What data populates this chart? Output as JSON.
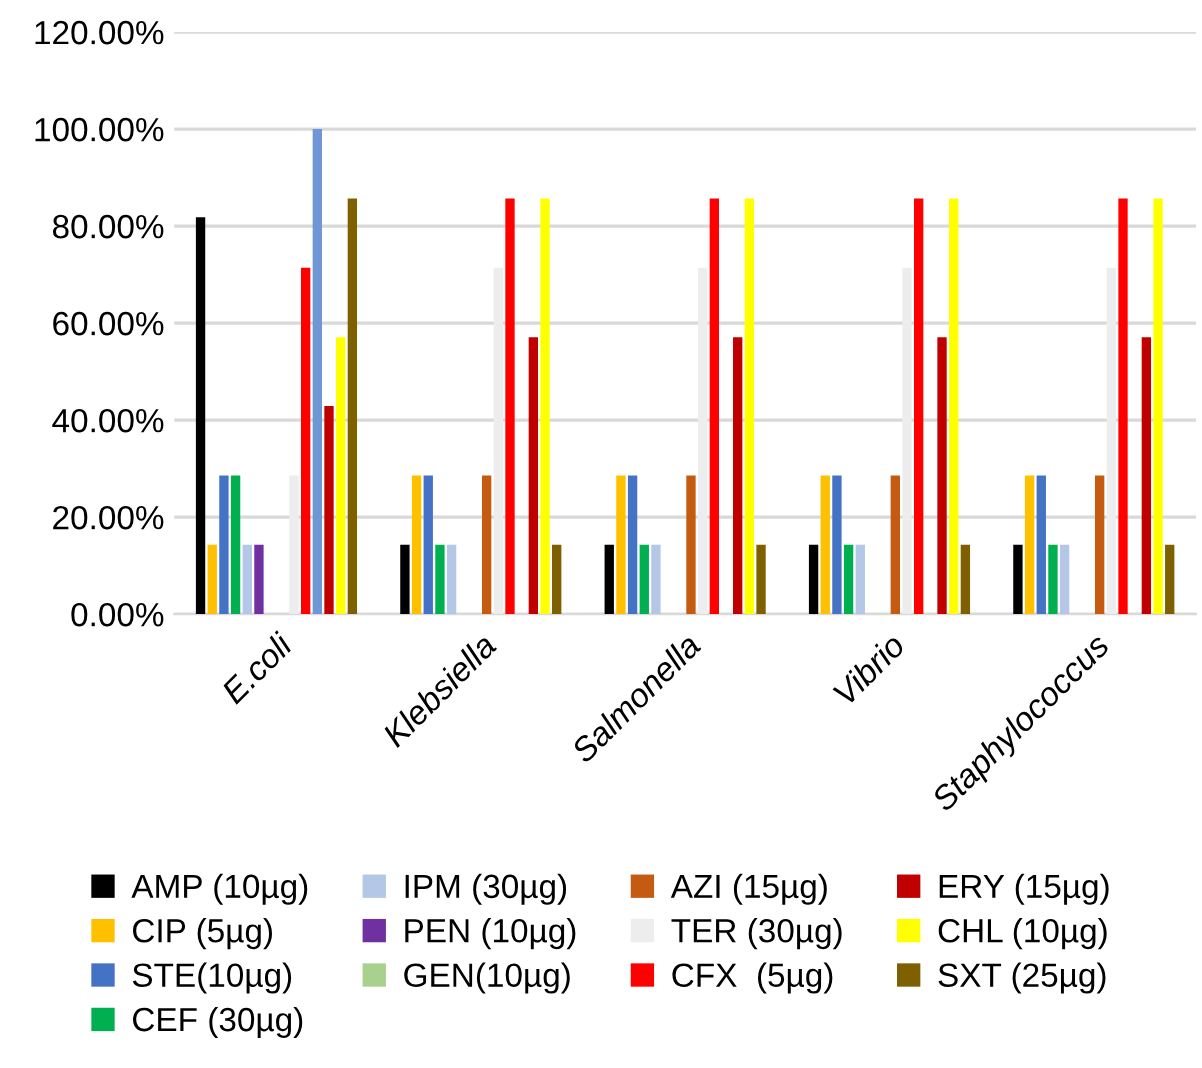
{
  "chart_data": {
    "type": "bar",
    "categories": [
      "E.coli",
      "Klebsiella",
      "Salmonella",
      "Vibrio",
      "Staphylococcus"
    ],
    "series": [
      {
        "name": "AMP (10µg)",
        "color": "#000000",
        "values": [
          81.8,
          14.3,
          14.3,
          14.3,
          14.3
        ]
      },
      {
        "name": "CIP (5µg)",
        "color": "#ffc000",
        "values": [
          14.3,
          28.6,
          28.6,
          28.6,
          28.6
        ]
      },
      {
        "name": "STE(10µg)",
        "color": "#4472c4",
        "values": [
          28.6,
          28.6,
          28.6,
          28.6,
          28.6
        ]
      },
      {
        "name": "CEF (30µg)",
        "color": "#00b050",
        "values": [
          28.6,
          14.3,
          14.3,
          14.3,
          14.3
        ]
      },
      {
        "name": "IPM (30µg)",
        "color": "#b4c7e7",
        "values": [
          14.3,
          14.3,
          14.3,
          14.3,
          14.3
        ]
      },
      {
        "name": "PEN (10µg)",
        "color": "#7030a0",
        "values": [
          14.3,
          0,
          0,
          0,
          0
        ]
      },
      {
        "name": "GEN(10µg)",
        "color": "#a9d18e",
        "values": [
          0,
          0,
          0,
          0,
          0
        ]
      },
      {
        "name": "AZI (15µg)",
        "color": "#c55a11",
        "values": [
          0,
          28.6,
          28.6,
          28.6,
          28.6
        ]
      },
      {
        "name": "TER (30µg)",
        "color": "#ededed",
        "values": [
          28.6,
          71.4,
          71.4,
          71.4,
          71.4
        ]
      },
      {
        "name": "CFX  (5µg)",
        "color": "#ff0000",
        "values": [
          71.4,
          85.7,
          85.7,
          85.7,
          85.7
        ]
      },
      {
        "color": "#6f97d6",
        "values": [
          100,
          0,
          0,
          0,
          0
        ]
      },
      {
        "name": "ERY (15µg)",
        "color": "#c00000",
        "values": [
          42.9,
          57.1,
          57.1,
          57.1,
          57.1
        ]
      },
      {
        "name": "CHL (10µg)",
        "color": "#ffff00",
        "values": [
          57.1,
          85.7,
          85.7,
          85.7,
          85.7
        ]
      },
      {
        "name": "SXT (25µg)",
        "color": "#7f6000",
        "values": [
          85.7,
          14.3,
          14.3,
          14.3,
          14.3
        ]
      }
    ],
    "ylim": [
      0,
      120
    ],
    "yticks": [
      {
        "value": 0,
        "label": "0.00%"
      },
      {
        "value": 20,
        "label": "20.00%"
      },
      {
        "value": 40,
        "label": "40.00%"
      },
      {
        "value": 60,
        "label": "60.00%"
      },
      {
        "value": 80,
        "label": "80.00%"
      },
      {
        "value": 100,
        "label": "100.00%"
      },
      {
        "value": 120,
        "label": "120.00%"
      }
    ],
    "grid": "y",
    "legend": "bottom"
  }
}
